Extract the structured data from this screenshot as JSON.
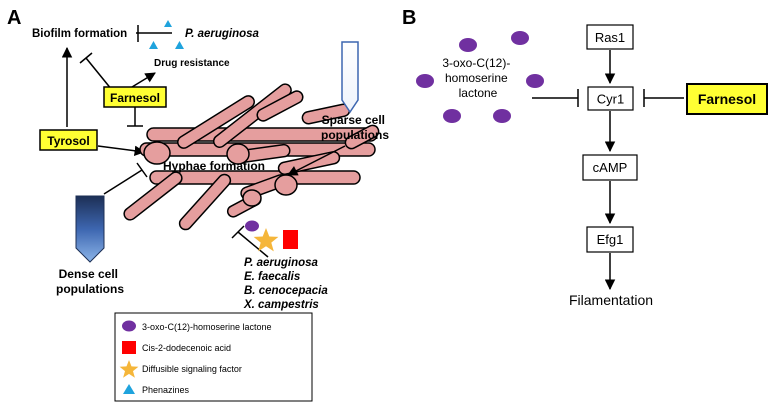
{
  "panelA": {
    "label": "A",
    "biofilm": "Biofilm formation",
    "pa_top": "P. aeruginosa",
    "drug": "Drug resistance",
    "farnesol": "Farnesol",
    "tyrosol": "Tyrosol",
    "hyphae": "Hyphae formation",
    "sparse": [
      "Sparse cell",
      "populations"
    ],
    "dense": [
      "Dense cell",
      "populations"
    ],
    "species": [
      "P. aeruginosa",
      "E. faecalis",
      "B. cenocepacia",
      "X. campestris"
    ],
    "legend": [
      {
        "shape": "purple-ellipse",
        "color": "#7030a0",
        "label": "3-oxo-C(12)-homoserine lactone"
      },
      {
        "shape": "red-square",
        "color": "#ff0000",
        "label": "Cis-2-dodecenoic acid"
      },
      {
        "shape": "yellow-star",
        "color": "#f5b63a",
        "label": "Diffusible signaling factor"
      },
      {
        "shape": "blue-triangle",
        "color": "#1fa3dd",
        "label": "Phenazines"
      }
    ],
    "colors": {
      "cell": "#e59e9e",
      "cell_stroke": "#000000",
      "highlight": "#ffff33"
    }
  },
  "panelB": {
    "label": "B",
    "hsl": [
      "3-oxo-C(12)-",
      "homoserine",
      "lactone"
    ],
    "ras1": "Ras1",
    "cyr1": "Cyr1",
    "camp": "cAMP",
    "efg1": "Efg1",
    "filamentation": "Filamentation",
    "farnesol": "Farnesol"
  }
}
